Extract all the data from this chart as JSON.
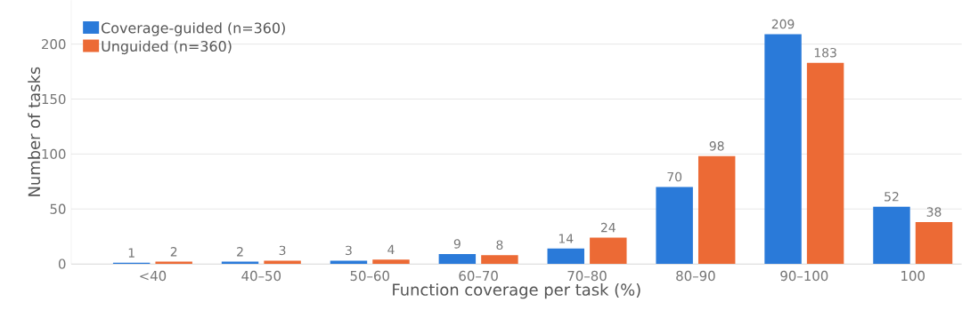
{
  "chart_data": {
    "type": "bar",
    "xlabel": "Function coverage per task (%)",
    "ylabel": "Number of tasks",
    "categories": [
      "<40",
      "40–50",
      "50–60",
      "60–70",
      "70–80",
      "80–90",
      "90–100",
      "100"
    ],
    "series": [
      {
        "name": "Coverage-guided (n=360)",
        "color": "#2a7ad9",
        "values": [
          1,
          2,
          3,
          9,
          14,
          70,
          209,
          52
        ]
      },
      {
        "name": "Unguided (n=360)",
        "color": "#ec6a35",
        "values": [
          2,
          3,
          4,
          8,
          24,
          98,
          183,
          38
        ]
      }
    ],
    "ylim": [
      0,
      240
    ],
    "yticks": [
      0,
      50,
      100,
      150,
      200
    ],
    "grid": "y",
    "legend": "top left",
    "data_labels": true
  }
}
